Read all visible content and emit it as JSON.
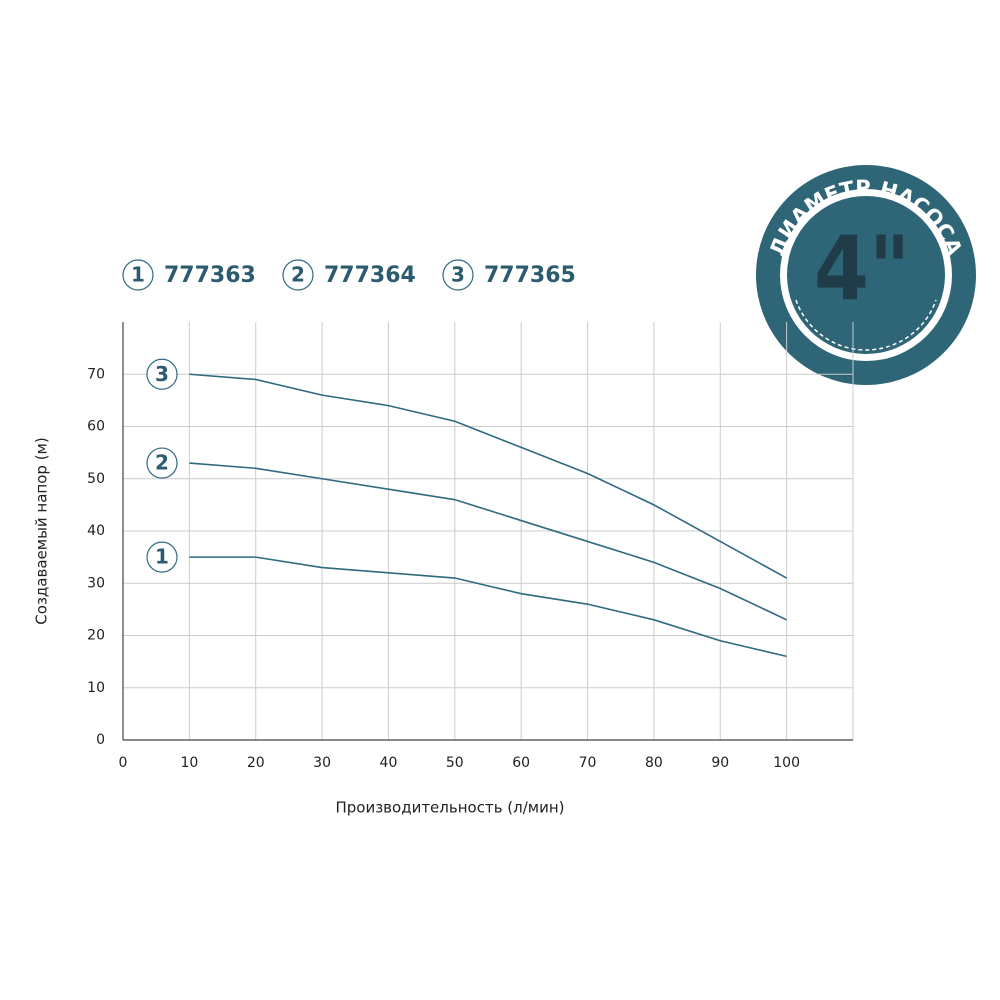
{
  "chart_data": {
    "type": "line",
    "x_label": "Производительность (л/мин)",
    "y_label": "Создаваемый напор (м)",
    "x": [
      10,
      20,
      30,
      40,
      50,
      60,
      70,
      80,
      90,
      100
    ],
    "series": [
      {
        "name": "777363",
        "label": "1",
        "color": "#2f6a80",
        "values": [
          35,
          35,
          33,
          32,
          31,
          28,
          26,
          23,
          19,
          16
        ]
      },
      {
        "name": "777364",
        "label": "2",
        "color": "#2f6a80",
        "values": [
          53,
          52,
          50,
          48,
          46,
          42,
          38,
          34,
          29,
          23
        ]
      },
      {
        "name": "777365",
        "label": "3",
        "color": "#2f6a80",
        "values": [
          70,
          69,
          66,
          64,
          61,
          56,
          51,
          45,
          38,
          31
        ]
      }
    ],
    "xlim": [
      0,
      110
    ],
    "xticks": [
      0,
      10,
      20,
      30,
      40,
      50,
      60,
      70,
      80,
      90,
      100
    ],
    "ylim": [
      0,
      80
    ],
    "yticks": [
      0,
      10,
      20,
      30,
      40,
      50,
      60,
      70
    ],
    "grid": true,
    "badge": {
      "caption": "ДИАМЕТР НАСОСА",
      "size": "4\""
    }
  }
}
